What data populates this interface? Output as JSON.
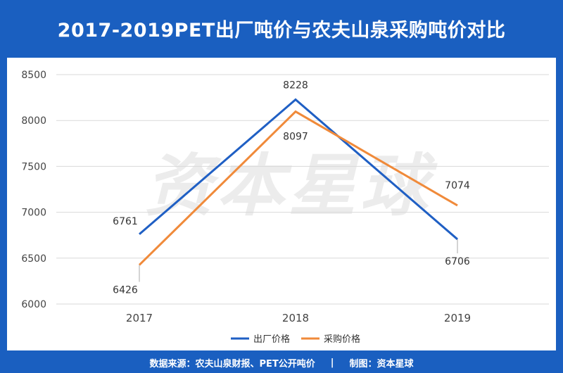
{
  "header": {
    "title": "2017-2019PET出厂吨价与农夫山泉采购吨价对比"
  },
  "watermark": "资本星球",
  "footer": {
    "source": "数据来源：农夫山泉财报、PET公开吨价",
    "separator": "|",
    "credit": "制图：资本星球"
  },
  "colors": {
    "background": "#1a5fc0",
    "series_factory": "#1f5fc4",
    "series_purchase": "#f08a3a",
    "grid": "#d9d9d9",
    "watermark": "#ececec"
  },
  "chart_data": {
    "type": "line",
    "categories": [
      "2017",
      "2018",
      "2019"
    ],
    "ylim": [
      6000,
      8500
    ],
    "yticks": [
      6000,
      6500,
      7000,
      7500,
      8000,
      8500
    ],
    "grid": true,
    "legend_position": "bottom",
    "series": [
      {
        "name": "出厂价格",
        "values": [
          6761,
          8228,
          6706
        ]
      },
      {
        "name": "采购价格",
        "values": [
          6426,
          8097,
          7074
        ]
      }
    ]
  }
}
